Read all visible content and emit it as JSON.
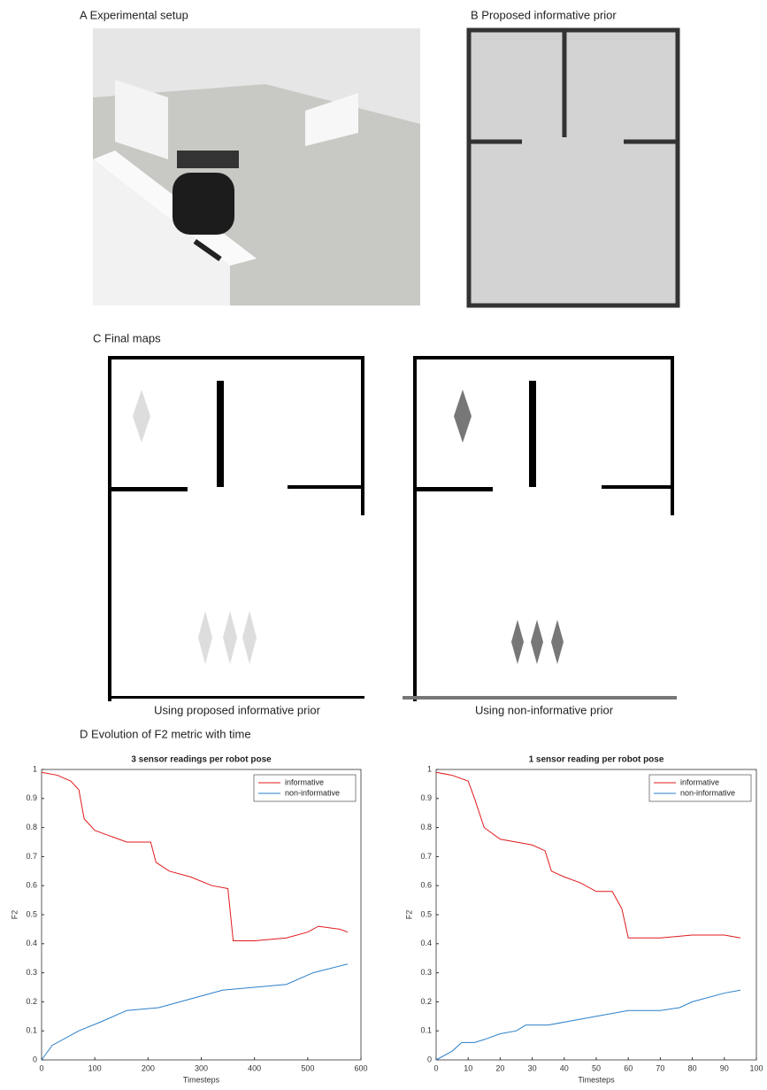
{
  "panels": {
    "a_label": "A Experimental setup",
    "b_label": "B Proposed informative prior",
    "c_label": "C Final maps",
    "c_left_caption": "Using proposed informative prior",
    "c_right_caption": "Using non-informative prior",
    "d_label": "D Evolution of F2 metric with time"
  },
  "chart_data": [
    {
      "type": "line",
      "title": "3 sensor readings per robot pose",
      "x_label": "Timesteps",
      "y_label": "F2",
      "xlim": [
        0,
        600
      ],
      "xticks": [
        0,
        100,
        200,
        300,
        400,
        500,
        600
      ],
      "ylim": [
        0,
        1
      ],
      "yticks": [
        0,
        0.1,
        0.2,
        0.3,
        0.4,
        0.5,
        0.6,
        0.7,
        0.8,
        0.9,
        1
      ],
      "legend": "northeast",
      "series": [
        {
          "name": "informative",
          "color": "#e0191c",
          "x": [
            0,
            30,
            55,
            70,
            80,
            100,
            130,
            160,
            205,
            215,
            240,
            280,
            320,
            350,
            360,
            400,
            460,
            500,
            520,
            560,
            575
          ],
          "values": [
            0.99,
            0.98,
            0.96,
            0.93,
            0.83,
            0.79,
            0.77,
            0.75,
            0.75,
            0.68,
            0.65,
            0.63,
            0.6,
            0.59,
            0.41,
            0.41,
            0.42,
            0.44,
            0.46,
            0.45,
            0.44
          ]
        },
        {
          "name": "non-informative",
          "color": "#2a7fc9",
          "x": [
            0,
            20,
            70,
            110,
            160,
            220,
            280,
            340,
            400,
            460,
            510,
            575
          ],
          "values": [
            0,
            0.05,
            0.1,
            0.13,
            0.17,
            0.18,
            0.21,
            0.24,
            0.25,
            0.26,
            0.3,
            0.33
          ]
        }
      ]
    },
    {
      "type": "line",
      "title": "1 sensor reading per robot pose",
      "x_label": "Timesteps",
      "y_label": "F2",
      "xlim": [
        0,
        100
      ],
      "xticks": [
        0,
        10,
        20,
        30,
        40,
        50,
        60,
        70,
        80,
        90,
        100
      ],
      "ylim": [
        0,
        1
      ],
      "yticks": [
        0,
        0.1,
        0.2,
        0.3,
        0.4,
        0.5,
        0.6,
        0.7,
        0.8,
        0.9,
        1
      ],
      "legend": "northeast",
      "series": [
        {
          "name": "informative",
          "color": "#e0191c",
          "x": [
            0,
            5,
            10,
            12,
            15,
            20,
            25,
            30,
            34,
            36,
            40,
            45,
            50,
            55,
            58,
            60,
            70,
            80,
            90,
            95
          ],
          "values": [
            0.99,
            0.98,
            0.96,
            0.9,
            0.8,
            0.76,
            0.75,
            0.74,
            0.72,
            0.65,
            0.63,
            0.61,
            0.58,
            0.58,
            0.52,
            0.42,
            0.42,
            0.43,
            0.43,
            0.42
          ]
        },
        {
          "name": "non-informative",
          "color": "#2a7fc9",
          "x": [
            0,
            5,
            8,
            12,
            15,
            20,
            25,
            28,
            35,
            40,
            50,
            60,
            70,
            76,
            80,
            90,
            95
          ],
          "values": [
            0,
            0.03,
            0.06,
            0.06,
            0.07,
            0.09,
            0.1,
            0.12,
            0.12,
            0.13,
            0.15,
            0.17,
            0.17,
            0.18,
            0.2,
            0.23,
            0.24
          ]
        }
      ]
    }
  ]
}
